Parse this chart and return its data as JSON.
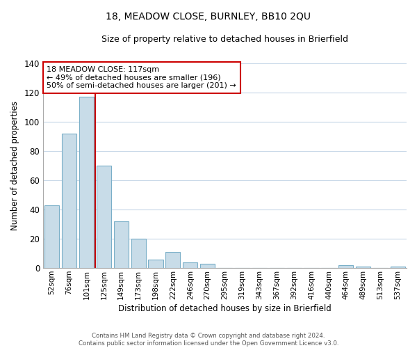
{
  "title1": "18, MEADOW CLOSE, BURNLEY, BB10 2QU",
  "title2": "Size of property relative to detached houses in Brierfield",
  "xlabel": "Distribution of detached houses by size in Brierfield",
  "ylabel": "Number of detached properties",
  "bar_labels": [
    "52sqm",
    "76sqm",
    "101sqm",
    "125sqm",
    "149sqm",
    "173sqm",
    "198sqm",
    "222sqm",
    "246sqm",
    "270sqm",
    "295sqm",
    "319sqm",
    "343sqm",
    "367sqm",
    "392sqm",
    "416sqm",
    "440sqm",
    "464sqm",
    "489sqm",
    "513sqm",
    "537sqm"
  ],
  "bar_values": [
    43,
    92,
    117,
    70,
    32,
    20,
    6,
    11,
    4,
    3,
    0,
    0,
    0,
    0,
    0,
    0,
    0,
    2,
    1,
    0,
    1
  ],
  "bar_color": "#c8dce8",
  "bar_edge_color": "#7aafc8",
  "vline_color": "#cc0000",
  "ylim": [
    0,
    140
  ],
  "yticks": [
    0,
    20,
    40,
    60,
    80,
    100,
    120,
    140
  ],
  "annotation_line1": "18 MEADOW CLOSE: 117sqm",
  "annotation_line2": "← 49% of detached houses are smaller (196)",
  "annotation_line3": "50% of semi-detached houses are larger (201) →",
  "annotation_box_color": "#ffffff",
  "annotation_box_edge": "#cc0000",
  "footer1": "Contains HM Land Registry data © Crown copyright and database right 2024.",
  "footer2": "Contains public sector information licensed under the Open Government Licence v3.0.",
  "background_color": "#ffffff",
  "grid_color": "#c8d8e8"
}
